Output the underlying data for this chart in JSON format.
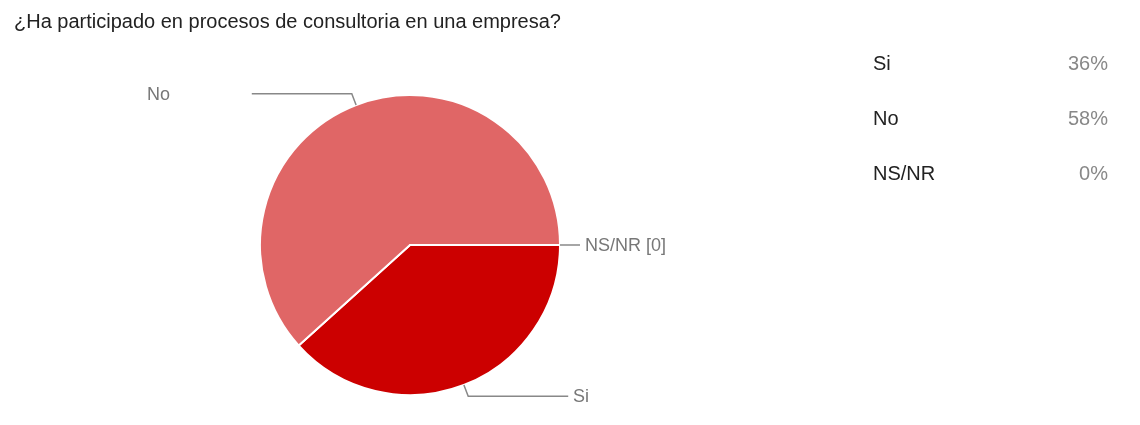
{
  "chart_data": [
    {
      "type": "pie",
      "title": "¿Ha participado en procesos de consultoria en una empresa?",
      "categories": [
        "Si",
        "No",
        "NS/NR [0]"
      ],
      "values": [
        38.3,
        61.7,
        0
      ],
      "colors": [
        "#cc0000",
        "#e06666",
        "#f4cccc"
      ]
    },
    {
      "type": "other",
      "annotations": [
        "Si",
        "36%",
        "No",
        "58%",
        "NS/NR",
        "0%"
      ]
    }
  ]
}
